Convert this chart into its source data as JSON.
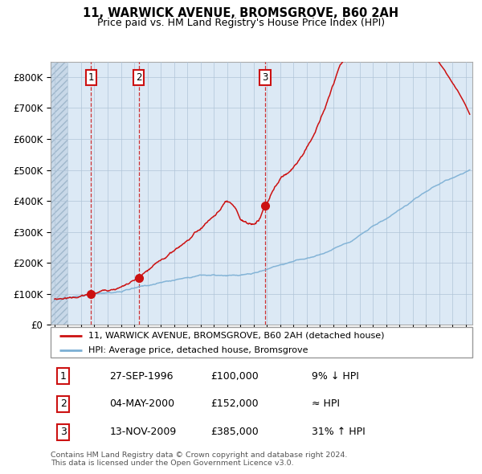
{
  "title1": "11, WARWICK AVENUE, BROMSGROVE, B60 2AH",
  "title2": "Price paid vs. HM Land Registry's House Price Index (HPI)",
  "ylabel_ticks": [
    "£0",
    "£100K",
    "£200K",
    "£300K",
    "£400K",
    "£500K",
    "£600K",
    "£700K",
    "£800K"
  ],
  "ytick_values": [
    0,
    100000,
    200000,
    300000,
    400000,
    500000,
    600000,
    700000,
    800000
  ],
  "ylim": [
    0,
    850000
  ],
  "xlim_start": 1993.7,
  "xlim_end": 2025.5,
  "purchases": [
    {
      "num": 1,
      "date": "27-SEP-1996",
      "price": 100000,
      "year": 1996.75,
      "hpi_rel": "9% ↓ HPI"
    },
    {
      "num": 2,
      "date": "04-MAY-2000",
      "price": 152000,
      "year": 2000.35,
      "hpi_rel": "≈ HPI"
    },
    {
      "num": 3,
      "date": "13-NOV-2009",
      "price": 385000,
      "year": 2009.87,
      "hpi_rel": "31% ↑ HPI"
    }
  ],
  "legend_line1": "11, WARWICK AVENUE, BROMSGROVE, B60 2AH (detached house)",
  "legend_line2": "HPI: Average price, detached house, Bromsgrove",
  "footnote": "Contains HM Land Registry data © Crown copyright and database right 2024.\nThis data is licensed under the Open Government Licence v3.0.",
  "hpi_color": "#7bafd4",
  "price_color": "#cc1111",
  "bg_color": "#dce9f5",
  "grid_color": "#b0c4d8",
  "hatch_start": 1993.7,
  "hatch_end": 1995.0,
  "data_start_year": 1995.0
}
